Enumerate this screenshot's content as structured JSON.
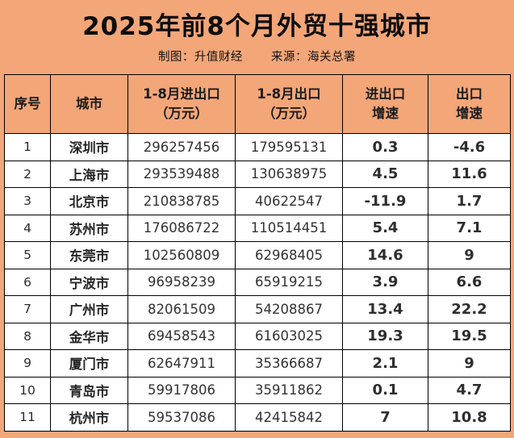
{
  "page": {
    "title": "2025年前8个月外贸十强城市",
    "credit": "制图：升值财经",
    "source": "来源：海关总署"
  },
  "colors": {
    "background": "#F3A678",
    "header_cell_background": "#F3A678",
    "data_cell_background": "#FFFFFF",
    "border": "#000000",
    "title_text": "#0D0D0D",
    "data_text": "#303030"
  },
  "table": {
    "header_lines": [
      [
        "序号"
      ],
      [
        "城市"
      ],
      [
        "1-8月进出口",
        "（万元）"
      ],
      [
        "1-8月出口",
        "（万元）"
      ],
      [
        "进出口",
        "增速"
      ],
      [
        "出口",
        "增速"
      ]
    ]
  },
  "chart_data": {
    "type": "table",
    "title": "2025年前8个月外贸十强城市",
    "subtitle": "制图：升值财经 来源：海关总署",
    "columns": [
      "序号",
      "城市",
      "1-8月进出口(万元)",
      "1-8月出口(万元)",
      "进出口增速",
      "出口增速"
    ],
    "rows": [
      [
        "1",
        "深圳市",
        "296257456",
        "179595131",
        "0.3",
        "-4.6"
      ],
      [
        "2",
        "上海市",
        "293539488",
        "130638975",
        "4.5",
        "11.6"
      ],
      [
        "3",
        "北京市",
        "210838785",
        "40622547",
        "-11.9",
        "1.7"
      ],
      [
        "4",
        "苏州市",
        "176086722",
        "110514451",
        "5.4",
        "7.1"
      ],
      [
        "5",
        "东莞市",
        "102560809",
        "62968405",
        "14.6",
        "9"
      ],
      [
        "6",
        "宁波市",
        "96958239",
        "65919215",
        "3.9",
        "6.6"
      ],
      [
        "7",
        "广州市",
        "82061509",
        "54208867",
        "13.4",
        "22.2"
      ],
      [
        "8",
        "金华市",
        "69458543",
        "61603025",
        "19.3",
        "19.5"
      ],
      [
        "9",
        "厦门市",
        "62647911",
        "35366687",
        "2.1",
        "9"
      ],
      [
        "10",
        "青岛市",
        "59917806",
        "35911862",
        "0.1",
        "4.7"
      ],
      [
        "11",
        "杭州市",
        "59537086",
        "42415842",
        "7",
        "10.8"
      ]
    ]
  }
}
